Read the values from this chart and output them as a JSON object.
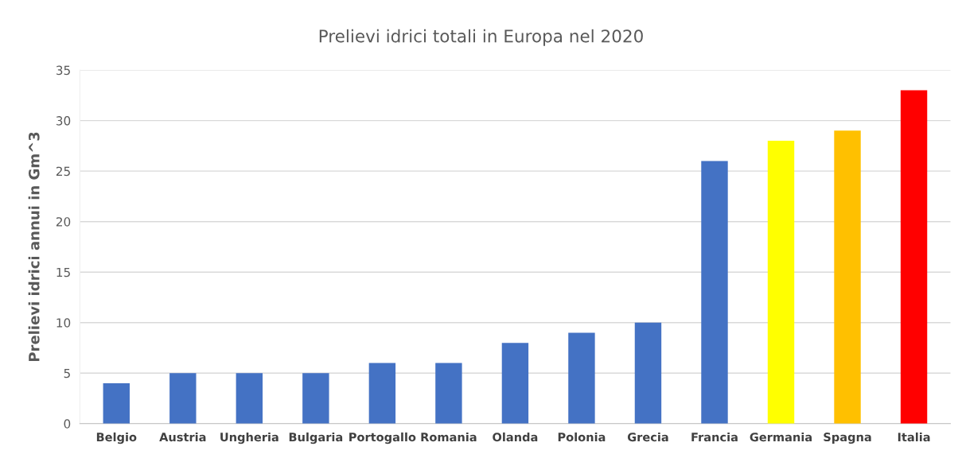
{
  "chart_data": {
    "type": "bar",
    "title": "Prelievi idrici totali in Europa nel 2020",
    "ylabel": "Prelievi idrici annui in Gm^3",
    "categories": [
      "Belgio",
      "Austria",
      "Ungheria",
      "Bulgaria",
      "Portogallo",
      "Romania",
      "Olanda",
      "Polonia",
      "Grecia",
      "Francia",
      "Germania",
      "Spagna",
      "Italia"
    ],
    "values": [
      4,
      5,
      5,
      5,
      6,
      6,
      8,
      9,
      10,
      26,
      28,
      29,
      33
    ],
    "colors": [
      "#4472c4",
      "#4472c4",
      "#4472c4",
      "#4472c4",
      "#4472c4",
      "#4472c4",
      "#4472c4",
      "#4472c4",
      "#4472c4",
      "#4472c4",
      "#ffff00",
      "#ffc000",
      "#ff0000"
    ],
    "ylim": [
      0,
      35
    ],
    "yticks": [
      0,
      5,
      10,
      15,
      20,
      25,
      30,
      35
    ],
    "grid": "y"
  }
}
